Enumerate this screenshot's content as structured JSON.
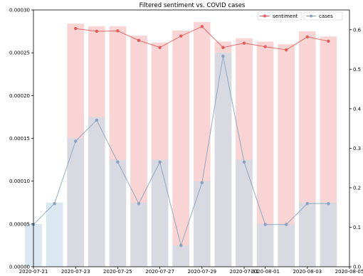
{
  "chart_data": {
    "type": "bar",
    "title": "Filtered sentiment vs. COVID cases",
    "x_ticks": [
      "2020-07-21",
      "2020-07-23",
      "2020-07-25",
      "2020-07-27",
      "2020-07-29",
      "2020-07-31",
      "2020-08-01",
      "2020-08-03",
      "2020-08-05"
    ],
    "x_tick_dates": [
      "2020-07-21",
      "2020-07-23",
      "2020-07-25",
      "2020-07-27",
      "2020-07-29",
      "2020-07-31",
      "2020-08-01",
      "2020-08-03",
      "2020-08-05"
    ],
    "xlim": [
      "2020-07-21",
      "2020-08-05"
    ],
    "left_axis": {
      "ylim": [
        0,
        0.0003
      ],
      "ticks": [
        "0.00000",
        "0.00005",
        "0.00010",
        "0.00015",
        "0.00020",
        "0.00025",
        "0.00030"
      ]
    },
    "right_axis": {
      "ylim": [
        0,
        0.65
      ],
      "ticks": [
        "0.0",
        "0.1",
        "0.2",
        "0.3",
        "0.4",
        "0.5",
        "0.6"
      ]
    },
    "legend_placement": "top-right",
    "series": [
      {
        "name": "sentiment",
        "kind": "line",
        "axis": "right",
        "color": "#e05c5c",
        "x": [
          "2020-07-23",
          "2020-07-24",
          "2020-07-25",
          "2020-07-26",
          "2020-07-27",
          "2020-07-28",
          "2020-07-29",
          "2020-07-30",
          "2020-07-31",
          "2020-08-01",
          "2020-08-02",
          "2020-08-03",
          "2020-08-04"
        ],
        "values": [
          0.603,
          0.596,
          0.597,
          0.573,
          0.555,
          0.584,
          0.608,
          0.555,
          0.566,
          0.557,
          0.549,
          0.582,
          0.571
        ]
      },
      {
        "name": "cases",
        "kind": "line",
        "axis": "right",
        "color": "#8aa2c0",
        "x": [
          "2020-07-21",
          "2020-07-22",
          "2020-07-23",
          "2020-07-24",
          "2020-07-25",
          "2020-07-26",
          "2020-07-27",
          "2020-07-28",
          "2020-07-29",
          "2020-07-30",
          "2020-07-31",
          "2020-08-01",
          "2020-08-02",
          "2020-08-03",
          "2020-08-04"
        ],
        "values": [
          0.107,
          0.16,
          0.318,
          0.371,
          0.265,
          0.16,
          0.265,
          0.054,
          0.213,
          0.533,
          0.265,
          0.107,
          0.107,
          0.16,
          0.16
        ]
      },
      {
        "kind": "bar",
        "axis": "left",
        "color": "#f5c2c2",
        "x": [
          "2020-07-23",
          "2020-07-24",
          "2020-07-25",
          "2020-07-26",
          "2020-07-27",
          "2020-07-28",
          "2020-07-29",
          "2020-07-30",
          "2020-07-31",
          "2020-08-01",
          "2020-08-02",
          "2020-08-03",
          "2020-08-04"
        ],
        "values": [
          0.000284,
          0.000281,
          0.000281,
          0.00027,
          0.000262,
          0.000276,
          0.000286,
          0.000263,
          0.000267,
          0.000263,
          0.00026,
          0.000275,
          0.000269
        ]
      },
      {
        "kind": "bar",
        "axis": "left",
        "color": "#c8dbea",
        "x": [
          "2020-07-21",
          "2020-07-22",
          "2020-07-23",
          "2020-07-24",
          "2020-07-25",
          "2020-07-26",
          "2020-07-27",
          "2020-07-28",
          "2020-07-29",
          "2020-07-30",
          "2020-07-31",
          "2020-08-01",
          "2020-08-02",
          "2020-08-03",
          "2020-08-04"
        ],
        "values": [
          5e-05,
          7.5e-05,
          0.00015,
          0.000175,
          0.000125,
          7.5e-05,
          0.000125,
          2.5e-05,
          0.0001,
          0.00025,
          0.000125,
          5e-05,
          5e-05,
          7.5e-05,
          7.5e-05
        ]
      }
    ],
    "colors": {
      "axis": "#000000",
      "background": "#ffffff"
    }
  }
}
